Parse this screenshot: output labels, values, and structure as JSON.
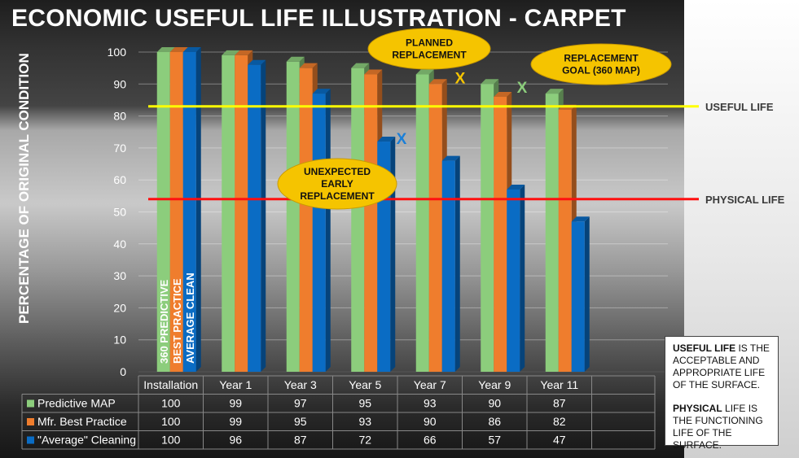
{
  "title": "ECONOMIC USEFUL LIFE ILLUSTRATION - CARPET",
  "chart_data": {
    "type": "bar",
    "title": "ECONOMIC USEFUL LIFE ILLUSTRATION - CARPET",
    "ylabel": "PERCENTAGE OF ORIGINAL CONDITION",
    "xlabel": "",
    "ylim": [
      0,
      100
    ],
    "yticks": [
      0,
      10,
      20,
      30,
      40,
      50,
      60,
      70,
      80,
      90,
      100
    ],
    "categories": [
      "Installation",
      "Year 1",
      "Year 3",
      "Year 5",
      "Year 7",
      "Year 9",
      "Year 11"
    ],
    "series": [
      {
        "name": "Predictive MAP",
        "color": "#8ccd7c",
        "values": [
          100,
          99,
          97,
          95,
          93,
          90,
          87
        ]
      },
      {
        "name": "Mfr. Best Practice",
        "color": "#ef7d2d",
        "values": [
          100,
          99,
          95,
          93,
          90,
          86,
          82
        ]
      },
      {
        "name": "\"Average\" Cleaning",
        "color": "#0a6cc4",
        "values": [
          100,
          96,
          87,
          72,
          66,
          57,
          47
        ]
      }
    ],
    "bar_labels": [
      "360 PREDICTIVE",
      "BEST PRACTICE",
      "AVERAGE CLEAN"
    ],
    "reference_lines": [
      {
        "label": "USEFUL LIFE",
        "value": 83,
        "color": "#ffff00"
      },
      {
        "label": "PHYSICAL LIFE",
        "value": 54,
        "color": "#ff1010"
      }
    ],
    "annotations": [
      {
        "lines": [
          "PLANNED",
          "REPLACEMENT"
        ],
        "marker": "X",
        "marker_color": "#f5c400",
        "category": "Year 7",
        "value": 92
      },
      {
        "lines": [
          "REPLACEMENT",
          "GOAL (360 MAP)"
        ],
        "marker": "X",
        "marker_color": "#8ccd7c",
        "category": "Year 9",
        "value": 89
      },
      {
        "lines": [
          "UNEXPECTED",
          "EARLY",
          "REPLACEMENT"
        ],
        "marker": "X",
        "marker_color": "#1a7fd8",
        "category": "Year 5",
        "value": 73
      }
    ],
    "grid": true,
    "legend": "table-bottom"
  },
  "info_box": {
    "useful_bold": "USEFUL LIFE",
    "useful_rest": " IS THE ACCEPTABLE AND APPROPRIATE LIFE OF THE SURFACE.",
    "physical_bold": "PHYSICAL",
    "physical_rest": " LIFE IS THE FUNCTIONING LIFE OF THE SURFACE."
  }
}
